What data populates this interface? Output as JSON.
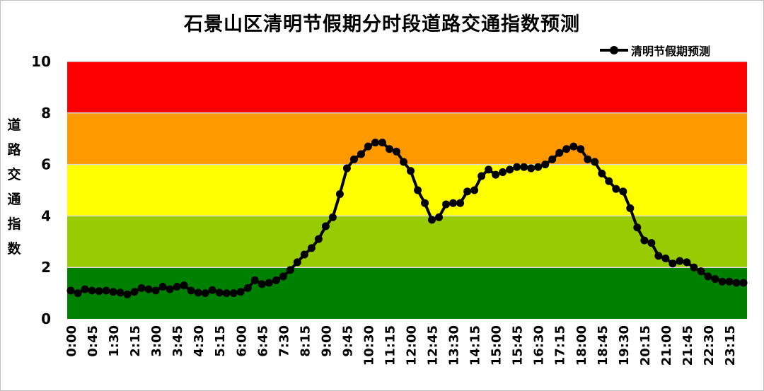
{
  "chart_data": {
    "type": "line",
    "title": "石景山区清明节假期分时段道路交通指数预测",
    "ylabel": "道路交通指数",
    "xlabel": "",
    "ylim": [
      0,
      10
    ],
    "yticks": [
      "0",
      "2",
      "4",
      "6",
      "8",
      "10"
    ],
    "legend_position": "top-right",
    "grid": false,
    "bands": [
      {
        "from": 0,
        "to": 2,
        "color": "#008000"
      },
      {
        "from": 2,
        "to": 4,
        "color": "#99cc00"
      },
      {
        "from": 4,
        "to": 6,
        "color": "#ffff00"
      },
      {
        "from": 6,
        "to": 8,
        "color": "#ff9900"
      },
      {
        "from": 8,
        "to": 10,
        "color": "#ff0000"
      }
    ],
    "x_tick_labels": [
      "0:00",
      "0:45",
      "1:30",
      "2:15",
      "3:00",
      "3:45",
      "4:30",
      "5:15",
      "6:00",
      "6:45",
      "7:30",
      "8:15",
      "9:00",
      "9:45",
      "10:30",
      "11:15",
      "12:00",
      "12:45",
      "13:30",
      "14:15",
      "15:00",
      "15:45",
      "16:30",
      "17:15",
      "18:00",
      "18:45",
      "19:30",
      "20:15",
      "21:00",
      "21:45",
      "22:30",
      "23:15"
    ],
    "series": [
      {
        "name": "清明节假期预测",
        "color": "#000000",
        "interval_minutes": 15,
        "values": [
          1.1,
          1.0,
          1.15,
          1.1,
          1.08,
          1.1,
          1.05,
          1.02,
          0.95,
          1.05,
          1.2,
          1.15,
          1.1,
          1.25,
          1.15,
          1.25,
          1.3,
          1.1,
          1.02,
          1.0,
          1.12,
          1.02,
          1.0,
          1.0,
          1.05,
          1.2,
          1.5,
          1.35,
          1.4,
          1.5,
          1.65,
          1.9,
          2.2,
          2.5,
          2.75,
          3.1,
          3.6,
          3.95,
          4.85,
          5.85,
          6.2,
          6.4,
          6.7,
          6.85,
          6.85,
          6.6,
          6.5,
          6.1,
          5.75,
          5.0,
          4.5,
          3.85,
          3.95,
          4.45,
          4.5,
          4.5,
          4.95,
          5.0,
          5.55,
          5.8,
          5.6,
          5.7,
          5.8,
          5.9,
          5.9,
          5.85,
          5.9,
          6.0,
          6.2,
          6.45,
          6.6,
          6.7,
          6.6,
          6.2,
          6.1,
          5.65,
          5.35,
          5.05,
          4.95,
          4.3,
          3.55,
          3.05,
          2.95,
          2.45,
          2.35,
          2.15,
          2.25,
          2.2,
          2.0,
          1.85,
          1.65,
          1.55,
          1.45,
          1.45,
          1.4,
          1.4
        ]
      }
    ]
  }
}
